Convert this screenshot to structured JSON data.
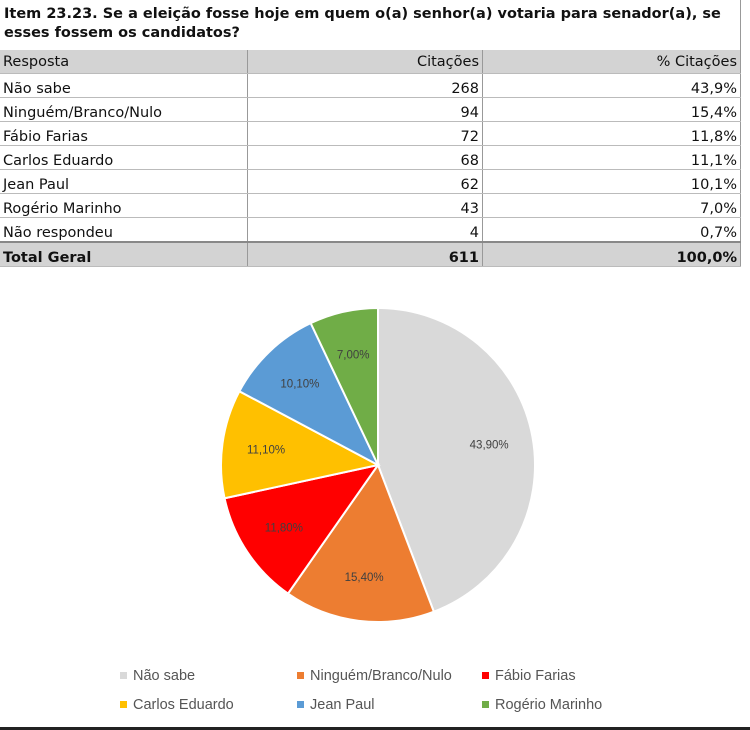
{
  "title": "Item 23.23. Se a eleição fosse hoje em quem o(a) senhor(a) votaria para senador(a), se esses fossem os candidatos?",
  "table": {
    "headers": [
      "Resposta",
      "Citações",
      "% Citações"
    ],
    "rows": [
      [
        "Não sabe",
        "268",
        "43,9%"
      ],
      [
        "Ninguém/Branco/Nulo",
        "94",
        "15,4%"
      ],
      [
        "Fábio Farias",
        "72",
        "11,8%"
      ],
      [
        "Carlos Eduardo",
        "68",
        "11,1%"
      ],
      [
        "Jean Paul",
        "62",
        "10,1%"
      ],
      [
        "Rogério Marinho",
        "43",
        "7,0%"
      ],
      [
        "Não respondeu",
        "4",
        "0,7%"
      ]
    ],
    "total": [
      "Total Geral",
      "611",
      "100,0%"
    ]
  },
  "chart_data": {
    "type": "pie",
    "categories": [
      "Não sabe",
      "Ninguém/Branco/Nulo",
      "Fábio Farias",
      "Carlos Eduardo",
      "Jean Paul",
      "Rogério Marinho"
    ],
    "values": [
      43.9,
      15.4,
      11.8,
      11.1,
      10.1,
      7.0
    ],
    "data_labels": [
      "43,90%",
      "15,40%",
      "11,80%",
      "11,10%",
      "10,10%",
      "7,00%"
    ],
    "colors": [
      "#d9d9d9",
      "#ed7d31",
      "#ff0000",
      "#ffc000",
      "#5b9bd5",
      "#70ad47"
    ],
    "start": "top",
    "direction": "clockwise",
    "legend_position": "bottom"
  }
}
